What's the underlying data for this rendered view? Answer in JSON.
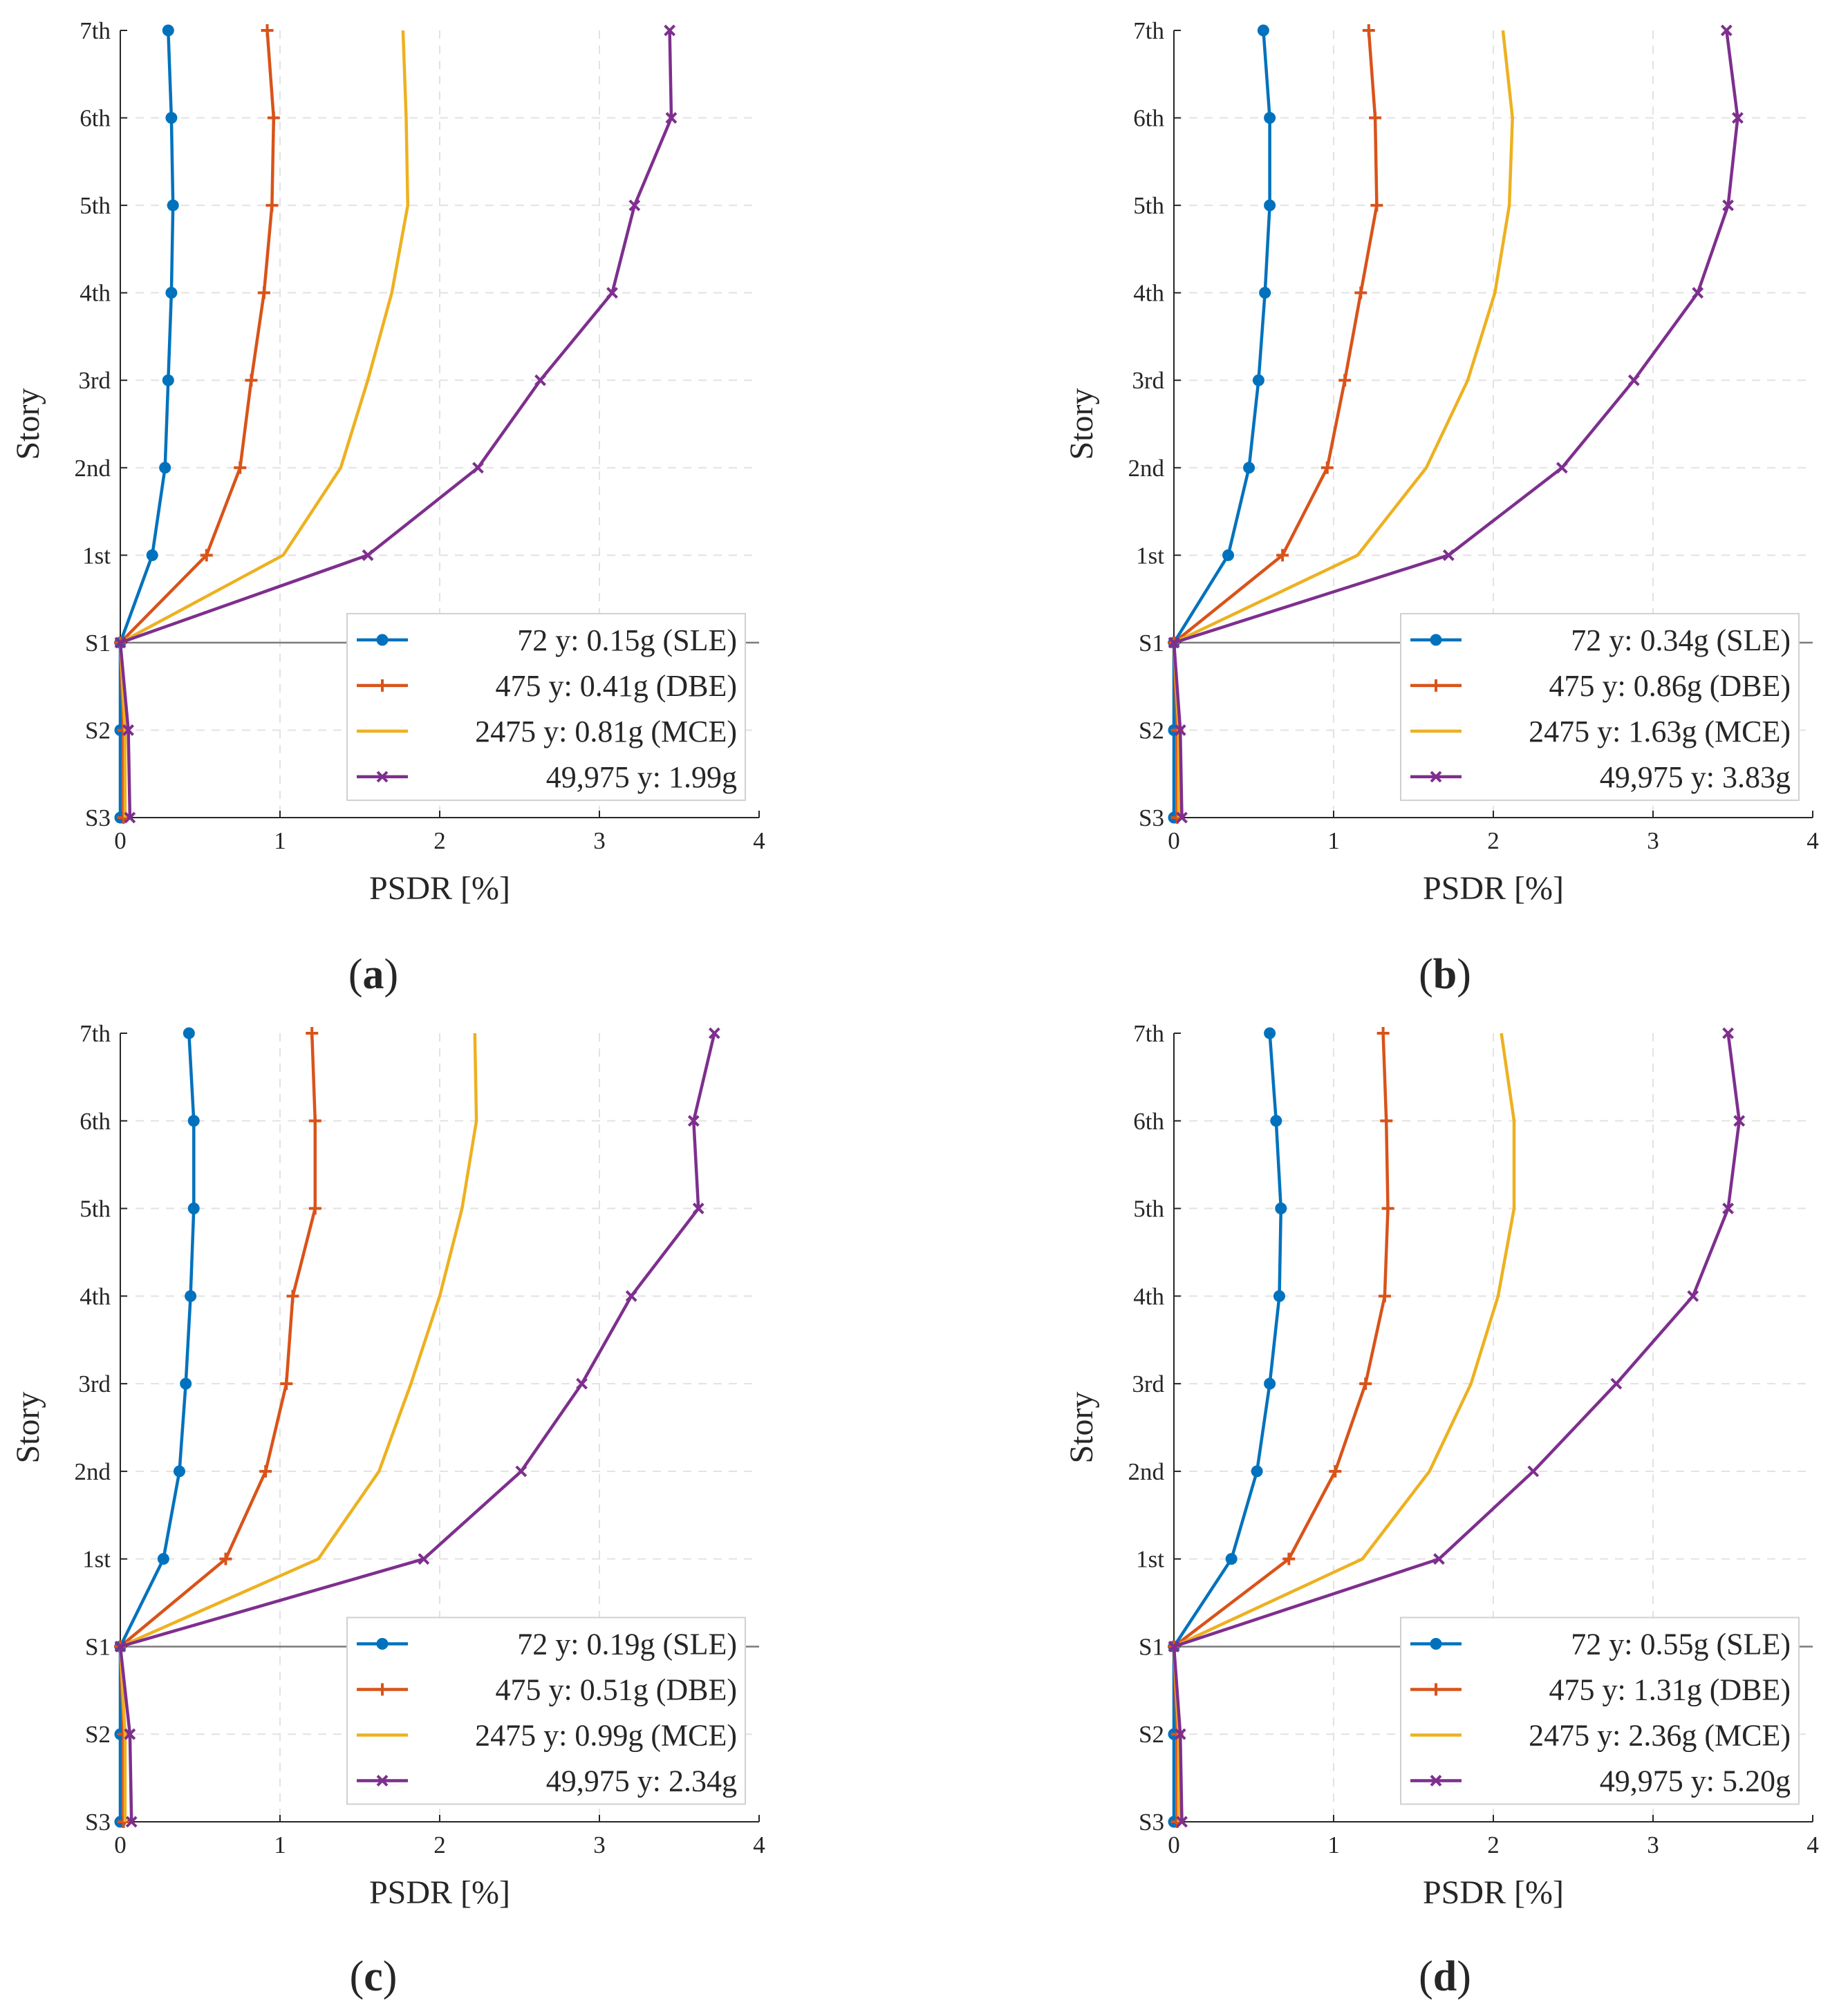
{
  "colors": {
    "SLE": "#0072BD",
    "DBE": "#D95319",
    "MCE": "#EDB120",
    "X": "#7E2F8E"
  },
  "chart_data": [
    {
      "type": "line",
      "panel": "a",
      "caption": "a",
      "xlabel": "PSDR [%]",
      "ylabel": "Story",
      "xlim": [
        0,
        4
      ],
      "xticks": [
        "0",
        "1",
        "2",
        "3",
        "4"
      ],
      "categories": [
        "S3",
        "S2",
        "S1",
        "1st",
        "2nd",
        "3rd",
        "4th",
        "5th",
        "6th",
        "7th"
      ],
      "grid": true,
      "legend_position": "lower-right",
      "series": [
        {
          "key": "SLE",
          "name": "72 y: 0.15g (SLE)",
          "marker": "dot",
          "values": [
            0.0,
            0.0,
            0.0,
            0.2,
            0.28,
            0.3,
            0.32,
            0.33,
            0.32,
            0.3
          ]
        },
        {
          "key": "DBE",
          "name": "475 y: 0.41g (DBE)",
          "marker": "plus",
          "values": [
            0.02,
            0.02,
            0.0,
            0.54,
            0.75,
            0.82,
            0.9,
            0.95,
            0.96,
            0.92
          ]
        },
        {
          "key": "MCE",
          "name": "2475 y: 0.81g (MCE)",
          "marker": "none",
          "values": [
            0.03,
            0.03,
            0.0,
            1.02,
            1.38,
            1.55,
            1.7,
            1.8,
            1.79,
            1.77
          ]
        },
        {
          "key": "X",
          "name": "49,975 y: 1.99g",
          "marker": "x",
          "values": [
            0.06,
            0.05,
            0.0,
            1.55,
            2.24,
            2.63,
            3.08,
            3.22,
            3.45,
            3.44
          ]
        }
      ]
    },
    {
      "type": "line",
      "panel": "b",
      "caption": "b",
      "xlabel": "PSDR [%]",
      "ylabel": "Story",
      "xlim": [
        0,
        4
      ],
      "xticks": [
        "0",
        "1",
        "2",
        "3",
        "4"
      ],
      "categories": [
        "S3",
        "S2",
        "S1",
        "1st",
        "2nd",
        "3rd",
        "4th",
        "5th",
        "6th",
        "7th"
      ],
      "grid": true,
      "legend_position": "lower-right",
      "series": [
        {
          "key": "SLE",
          "name": "72 y: 0.34g (SLE)",
          "marker": "dot",
          "values": [
            0.0,
            0.0,
            0.0,
            0.34,
            0.47,
            0.53,
            0.57,
            0.6,
            0.6,
            0.56
          ]
        },
        {
          "key": "DBE",
          "name": "475 y: 0.86g (DBE)",
          "marker": "plus",
          "values": [
            0.02,
            0.02,
            0.0,
            0.68,
            0.96,
            1.07,
            1.17,
            1.27,
            1.26,
            1.22
          ]
        },
        {
          "key": "MCE",
          "name": "2475 y: 1.63g (MCE)",
          "marker": "none",
          "values": [
            0.03,
            0.03,
            0.0,
            1.15,
            1.58,
            1.84,
            2.01,
            2.1,
            2.12,
            2.06
          ]
        },
        {
          "key": "X",
          "name": "49,975 y: 3.83g",
          "marker": "x",
          "values": [
            0.05,
            0.04,
            0.0,
            1.72,
            2.43,
            2.88,
            3.28,
            3.47,
            3.53,
            3.46
          ]
        }
      ]
    },
    {
      "type": "line",
      "panel": "c",
      "caption": "c",
      "xlabel": "PSDR [%]",
      "ylabel": "Story",
      "xlim": [
        0,
        4
      ],
      "xticks": [
        "0",
        "1",
        "2",
        "3",
        "4"
      ],
      "categories": [
        "S3",
        "S2",
        "S1",
        "1st",
        "2nd",
        "3rd",
        "4th",
        "5th",
        "6th",
        "7th"
      ],
      "grid": true,
      "legend_position": "lower-right",
      "series": [
        {
          "key": "SLE",
          "name": "72 y: 0.19g (SLE)",
          "marker": "dot",
          "values": [
            0.0,
            0.0,
            0.0,
            0.27,
            0.37,
            0.41,
            0.44,
            0.46,
            0.46,
            0.43
          ]
        },
        {
          "key": "DBE",
          "name": "475 y: 0.51g (DBE)",
          "marker": "plus",
          "values": [
            0.02,
            0.02,
            0.0,
            0.66,
            0.91,
            1.04,
            1.08,
            1.22,
            1.22,
            1.2
          ]
        },
        {
          "key": "MCE",
          "name": "2475 y: 0.99g (MCE)",
          "marker": "none",
          "values": [
            0.03,
            0.03,
            0.0,
            1.24,
            1.62,
            1.82,
            2.0,
            2.14,
            2.23,
            2.22
          ]
        },
        {
          "key": "X",
          "name": "49,975 y: 2.34g",
          "marker": "x",
          "values": [
            0.07,
            0.06,
            0.0,
            1.9,
            2.51,
            2.89,
            3.2,
            3.62,
            3.59,
            3.72
          ]
        }
      ]
    },
    {
      "type": "line",
      "panel": "d",
      "caption": "d",
      "xlabel": "PSDR [%]",
      "ylabel": "Story",
      "xlim": [
        0,
        4
      ],
      "xticks": [
        "0",
        "1",
        "2",
        "3",
        "4"
      ],
      "categories": [
        "S3",
        "S2",
        "S1",
        "1st",
        "2nd",
        "3rd",
        "4th",
        "5th",
        "6th",
        "7th"
      ],
      "grid": true,
      "legend_position": "lower-right",
      "series": [
        {
          "key": "SLE",
          "name": "72 y: 0.55g (SLE)",
          "marker": "dot",
          "values": [
            0.0,
            0.0,
            0.0,
            0.36,
            0.52,
            0.6,
            0.66,
            0.67,
            0.64,
            0.6
          ]
        },
        {
          "key": "DBE",
          "name": "475 y: 1.31g (DBE)",
          "marker": "plus",
          "values": [
            0.02,
            0.02,
            0.0,
            0.72,
            1.01,
            1.2,
            1.32,
            1.34,
            1.33,
            1.31
          ]
        },
        {
          "key": "MCE",
          "name": "2475 y: 2.36g (MCE)",
          "marker": "none",
          "values": [
            0.03,
            0.03,
            0.0,
            1.18,
            1.6,
            1.86,
            2.03,
            2.13,
            2.13,
            2.05
          ]
        },
        {
          "key": "X",
          "name": "49,975 y: 5.20g",
          "marker": "x",
          "values": [
            0.05,
            0.04,
            0.0,
            1.66,
            2.25,
            2.77,
            3.25,
            3.47,
            3.54,
            3.47
          ]
        }
      ]
    }
  ]
}
